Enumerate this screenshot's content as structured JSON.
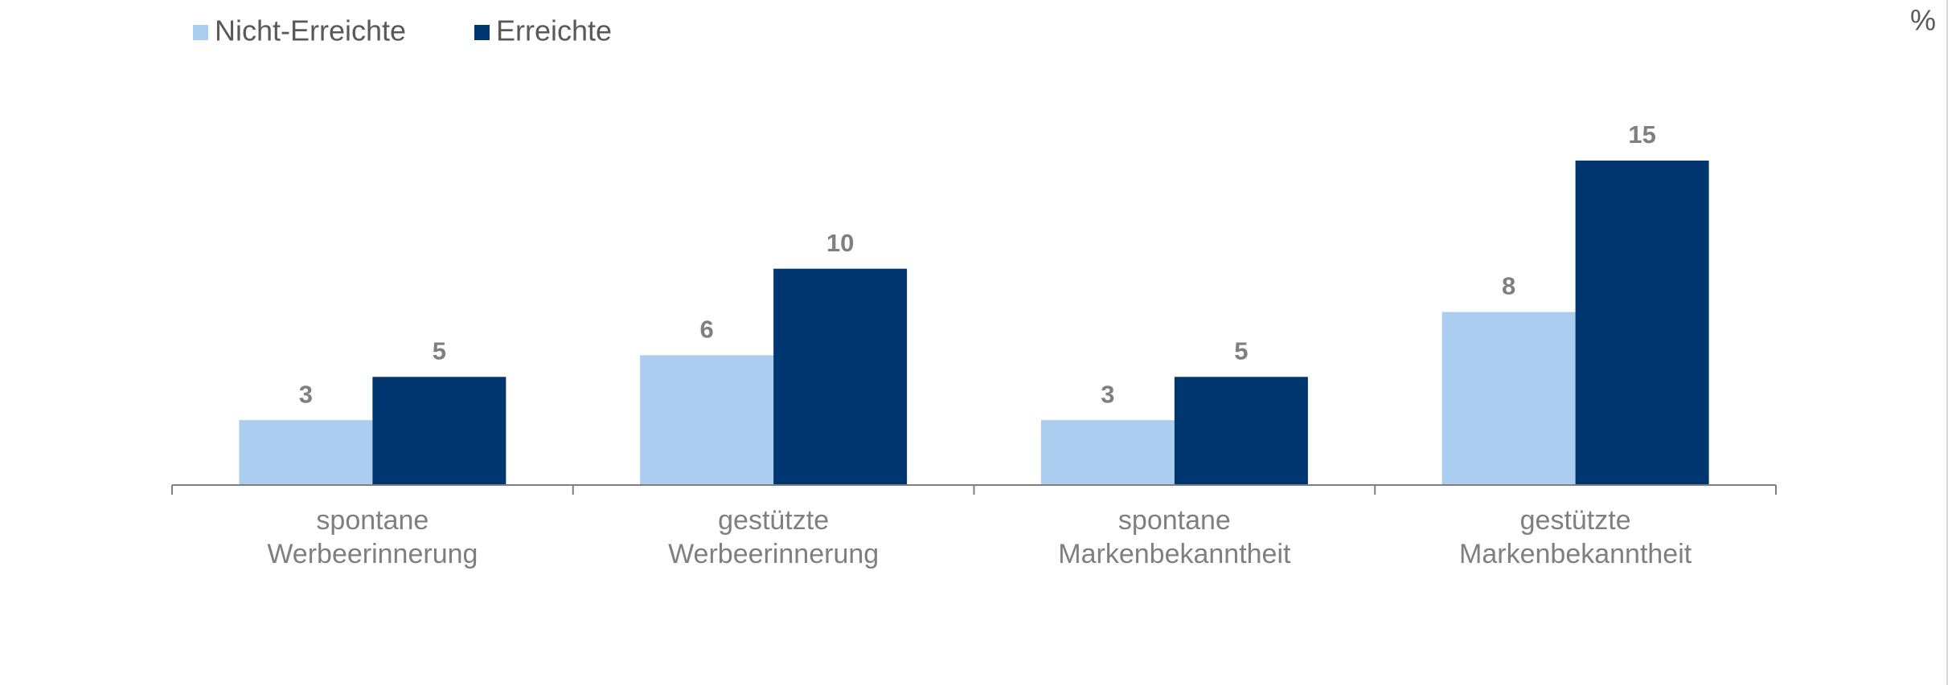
{
  "chart_data": {
    "type": "bar",
    "unit": "%",
    "categories": [
      [
        "spontane",
        "Werbeerinnerung"
      ],
      [
        "gestützte",
        "Werbeerinnerung"
      ],
      [
        "spontane",
        "Markenbekanntheit"
      ],
      [
        "gestützte",
        "Markenbekanntheit"
      ]
    ],
    "series": [
      {
        "name": "Nicht-Erreichte",
        "color": "#abcdf0",
        "values": [
          3,
          6,
          3,
          8
        ]
      },
      {
        "name": "Erreichte",
        "color": "#003670",
        "values": [
          5,
          10,
          5,
          15
        ]
      }
    ],
    "ylim": [
      0,
      16
    ],
    "legend": "top-left"
  }
}
